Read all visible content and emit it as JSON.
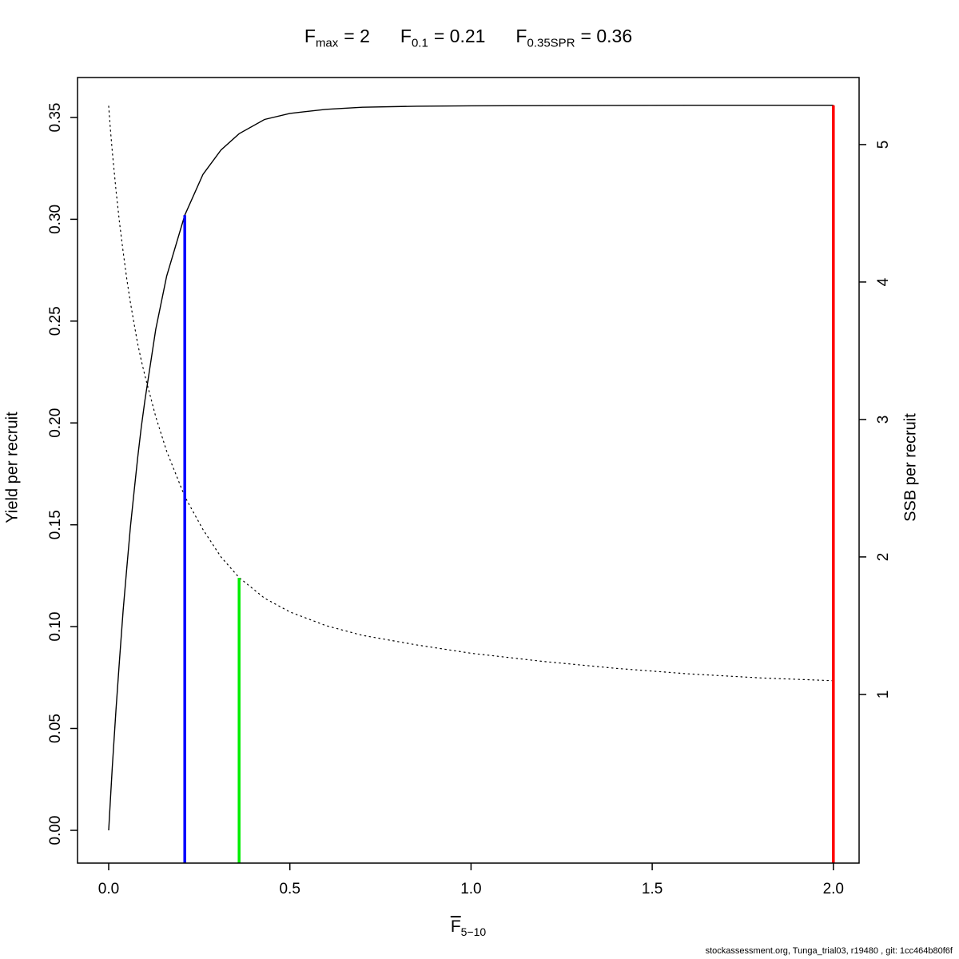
{
  "title": {
    "stats": [
      {
        "base": "F",
        "sub": "max",
        "value": "= 2"
      },
      {
        "base": "F",
        "sub": "0.1",
        "value": "= 0.21"
      },
      {
        "base": "F",
        "sub": "0.35SPR",
        "value": "= 0.36"
      }
    ]
  },
  "axes": {
    "x_label_base": "F",
    "x_label_sub": "5−10",
    "y_left_label": "Yield per recruit",
    "y_right_label": "SSB per recruit"
  },
  "footer": "stockassessment.org, Tunga_trial03, r19480 , git: 1cc464b80f6f",
  "chart_data": {
    "type": "line",
    "title": "Fmax = 2    F0.1 = 0.21    F0.35SPR = 0.36",
    "xlabel": "F̄ 5−10",
    "ylabel_left": "Yield per recruit",
    "ylabel_right": "SSB per recruit",
    "grid": false,
    "legend": false,
    "x_range": [
      -0.086,
      2.071
    ],
    "y_left_range": [
      -0.0161,
      0.3696
    ],
    "y_right_range": [
      -0.227,
      5.488
    ],
    "x": [
      0,
      0.005,
      0.01,
      0.02,
      0.03,
      0.04,
      0.05,
      0.06,
      0.07,
      0.08,
      0.09,
      0.1,
      0.13,
      0.16,
      0.21,
      0.26,
      0.31,
      0.36,
      0.43,
      0.5,
      0.6,
      0.7,
      0.85,
      1.0,
      1.2,
      1.4,
      1.6,
      1.8,
      2.0
    ],
    "series": [
      {
        "name": "Yield per recruit",
        "axis": "left",
        "style": "solid",
        "color": "#000000",
        "values": [
          0,
          0.016,
          0.031,
          0.059,
          0.084,
          0.108,
          0.129,
          0.149,
          0.166,
          0.183,
          0.198,
          0.211,
          0.246,
          0.272,
          0.302,
          0.322,
          0.334,
          0.342,
          0.349,
          0.352,
          0.354,
          0.355,
          0.3555,
          0.3557,
          0.3558,
          0.3559,
          0.356,
          0.356,
          0.356
        ]
      },
      {
        "name": "SSB per recruit",
        "axis": "right",
        "style": "dotted",
        "color": "#000000",
        "values": [
          5.28,
          5.1,
          4.95,
          4.67,
          4.43,
          4.22,
          4.02,
          3.85,
          3.7,
          3.55,
          3.43,
          3.32,
          3.02,
          2.77,
          2.44,
          2.2,
          2.0,
          1.85,
          1.7,
          1.6,
          1.5,
          1.43,
          1.36,
          1.3,
          1.24,
          1.19,
          1.15,
          1.12,
          1.1
        ]
      }
    ],
    "reference_lines": [
      {
        "name": "F0.1",
        "x": 0.21,
        "axis": "left",
        "y_top": 0.302,
        "color": "#0000ff"
      },
      {
        "name": "F0.35SPR",
        "x": 0.36,
        "axis": "right",
        "y_top": 1.848,
        "color": "#00ee00"
      },
      {
        "name": "Fmax",
        "x": 2.0,
        "axis": "left",
        "y_top": 0.356,
        "color": "#ff0000"
      }
    ],
    "x_ticks": {
      "values": [
        0,
        0.5,
        1.0,
        1.5,
        2.0
      ],
      "labels": [
        "0.0",
        "0.5",
        "1.0",
        "1.5",
        "2.0"
      ]
    },
    "y_left_ticks": {
      "values": [
        0,
        0.05,
        0.1,
        0.15,
        0.2,
        0.25,
        0.3,
        0.35
      ],
      "labels": [
        "0.00",
        "0.05",
        "0.10",
        "0.15",
        "0.20",
        "0.25",
        "0.30",
        "0.35"
      ]
    },
    "y_right_ticks": {
      "values": [
        1,
        2,
        3,
        4,
        5
      ],
      "labels": [
        "1",
        "2",
        "3",
        "4",
        "5"
      ]
    }
  }
}
